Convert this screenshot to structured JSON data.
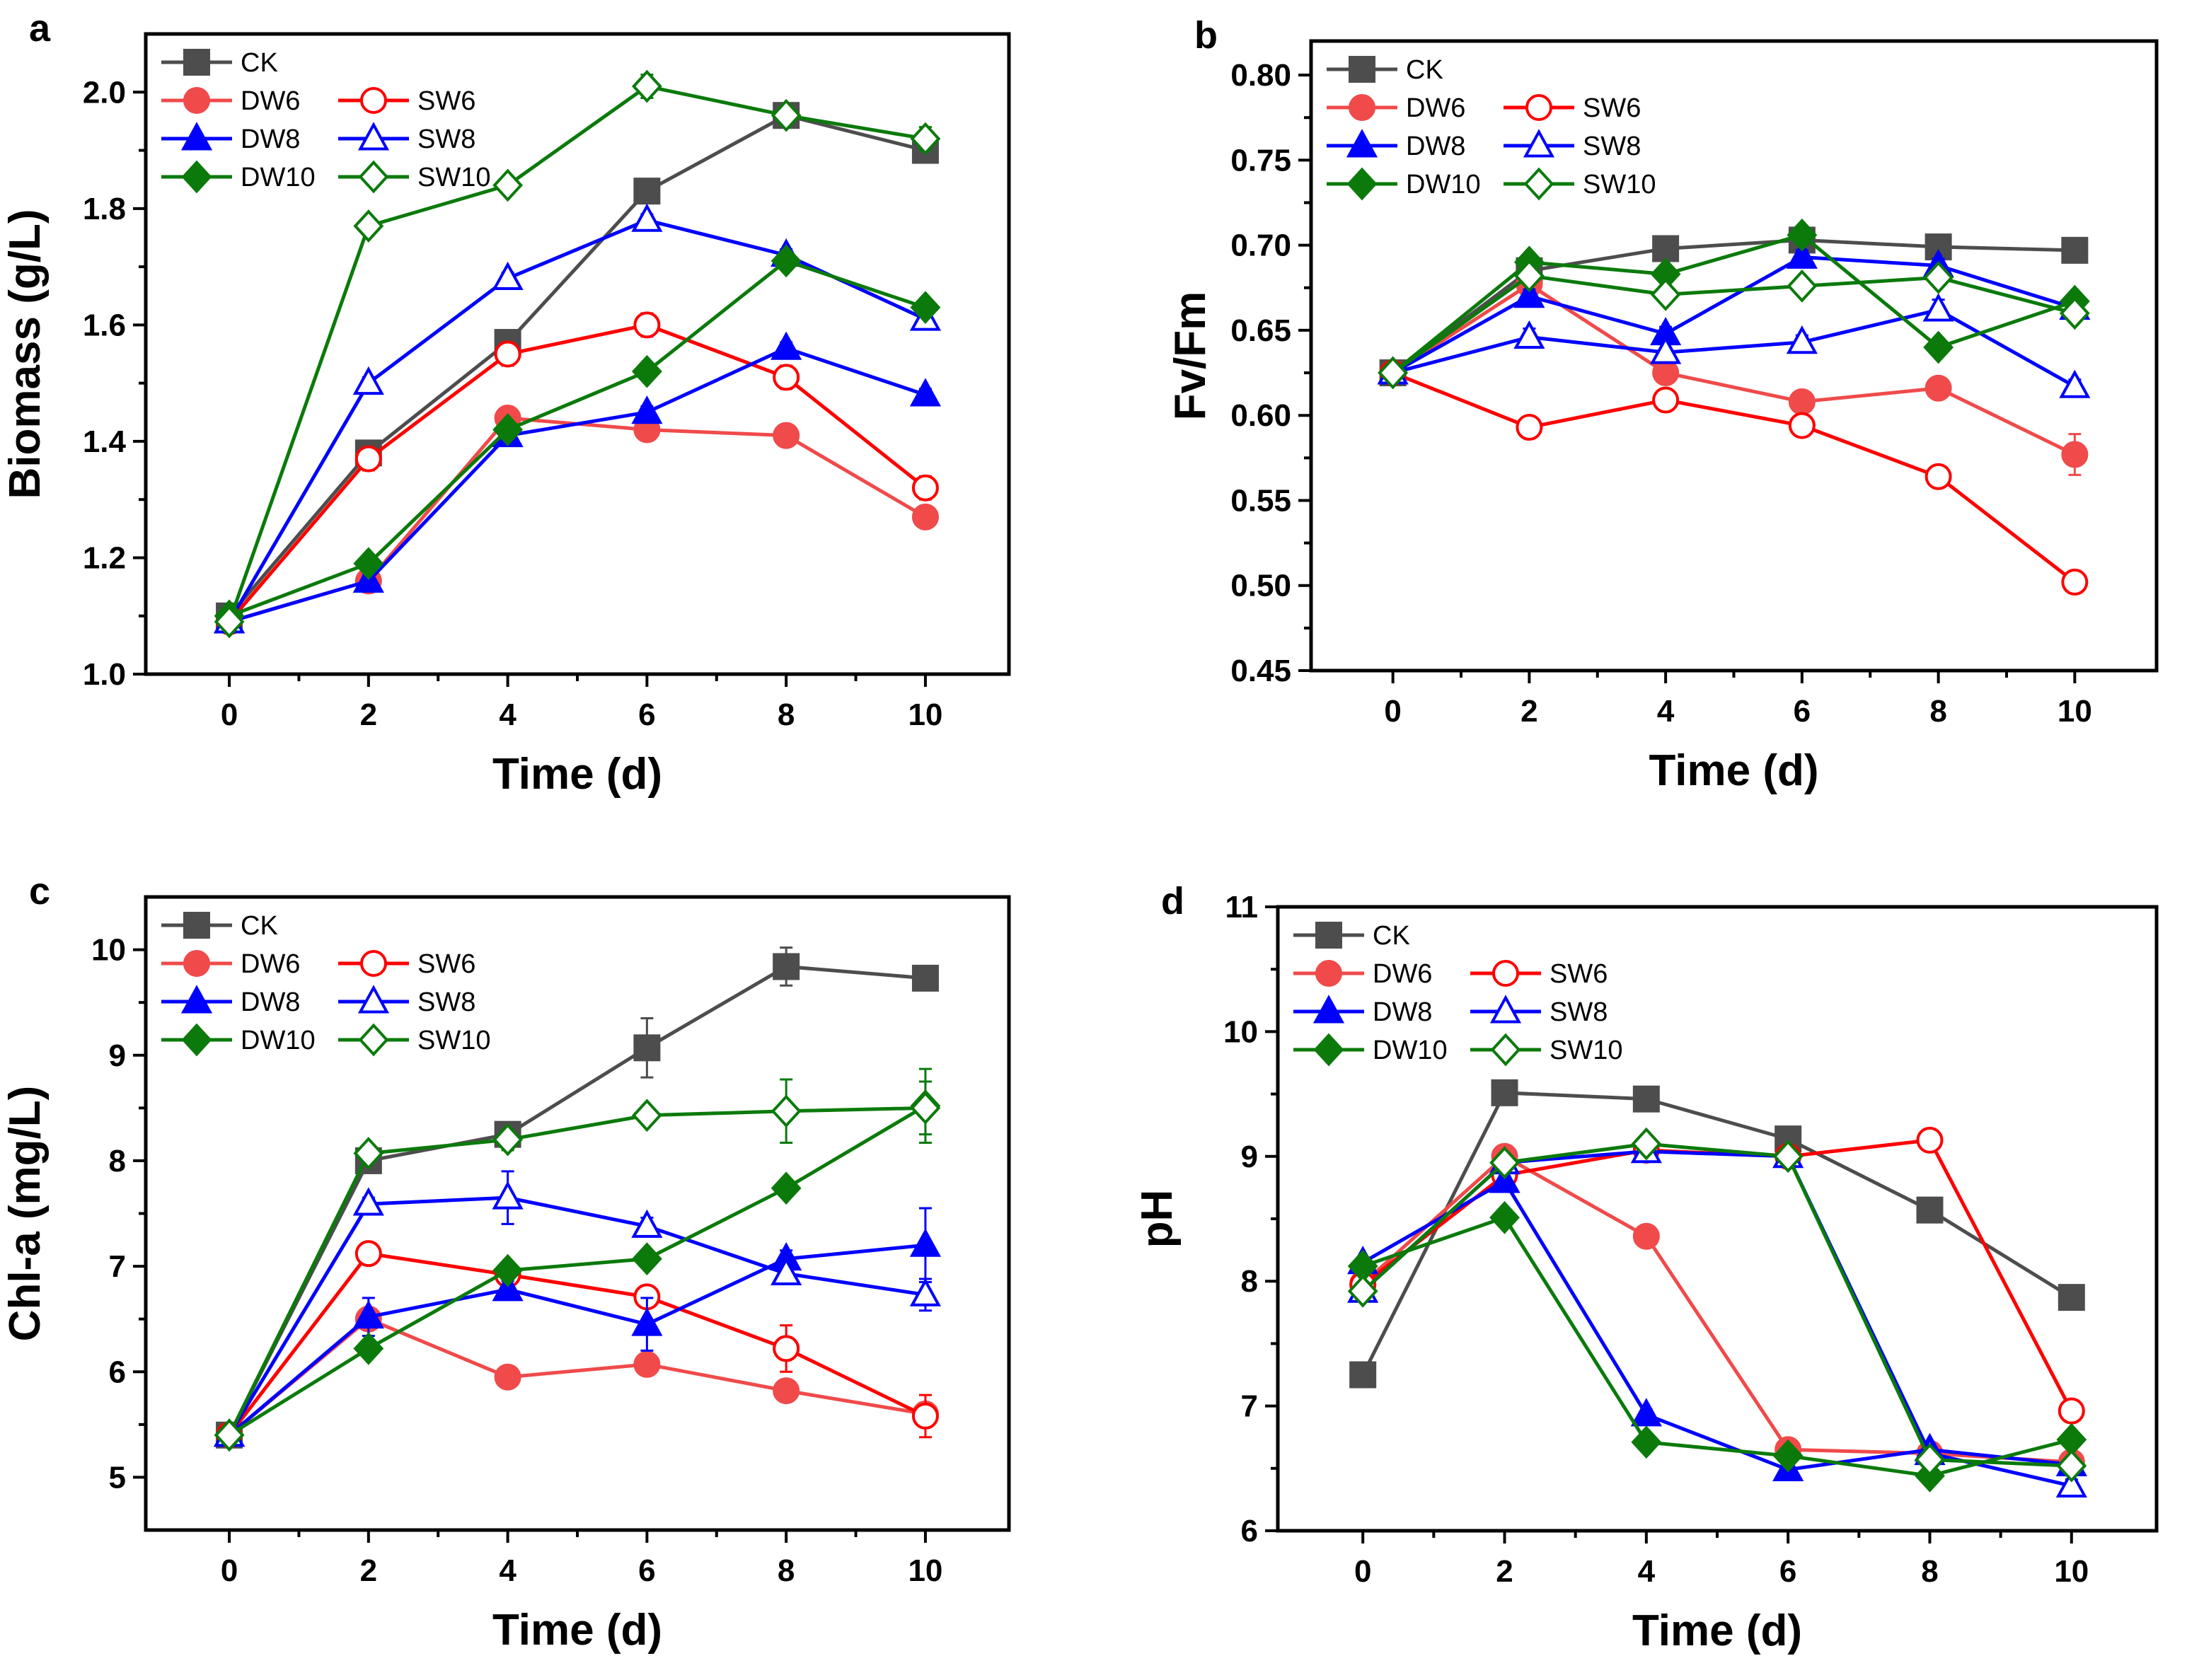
{
  "colors": {
    "CK": "#4d4d4d",
    "DW6": "#f04a4a",
    "SW6": "#ff0000",
    "DW8": "#0000ff",
    "SW8": "#0000ff",
    "DW10": "#0b7a0b",
    "SW10": "#0b7a0b"
  },
  "chart_data": [
    {
      "panel": "a",
      "type": "line",
      "xlabel": "Time (d)",
      "ylabel": "Biomass (g/L)",
      "x": [
        0,
        2,
        4,
        6,
        8,
        10
      ],
      "xticks": [
        "0",
        "2",
        "4",
        "6",
        "8",
        "10"
      ],
      "xlim": [
        -1.2,
        11.2
      ],
      "ylim": [
        1.0,
        2.1
      ],
      "yticks": [
        "1.0",
        "1.2",
        "1.4",
        "1.6",
        "1.8",
        "2.0"
      ],
      "legend": [
        "CK",
        "DW6",
        "SW6",
        "DW8",
        "SW8",
        "DW10",
        "SW10"
      ],
      "series": [
        {
          "name": "CK",
          "values": [
            1.1,
            1.38,
            1.57,
            1.83,
            1.96,
            1.9
          ],
          "errors": [
            0.01,
            0.01,
            0.01,
            0.01,
            0.01,
            0.01
          ]
        },
        {
          "name": "DW6",
          "values": [
            1.09,
            1.16,
            1.44,
            1.42,
            1.41,
            1.27
          ],
          "errors": [
            0.01,
            0.01,
            0.01,
            0.01,
            0.01,
            0.01
          ]
        },
        {
          "name": "SW6",
          "values": [
            1.09,
            1.37,
            1.55,
            1.6,
            1.51,
            1.32
          ],
          "errors": [
            0.01,
            0.02,
            0.02,
            0.02,
            0.02,
            0.02
          ]
        },
        {
          "name": "DW8",
          "values": [
            1.09,
            1.16,
            1.41,
            1.45,
            1.56,
            1.48
          ],
          "errors": [
            0.01,
            0.01,
            0.01,
            0.01,
            0.01,
            0.01
          ]
        },
        {
          "name": "SW8",
          "values": [
            1.09,
            1.5,
            1.68,
            1.78,
            1.72,
            1.61
          ],
          "errors": [
            0.01,
            0.01,
            0.01,
            0.01,
            0.01,
            0.01
          ]
        },
        {
          "name": "DW10",
          "values": [
            1.1,
            1.19,
            1.42,
            1.52,
            1.71,
            1.63
          ],
          "errors": [
            0.01,
            0.01,
            0.01,
            0.01,
            0.01,
            0.01
          ]
        },
        {
          "name": "SW10",
          "values": [
            1.09,
            1.77,
            1.84,
            2.01,
            1.96,
            1.92
          ],
          "errors": [
            0.01,
            0.01,
            0.01,
            0.02,
            0.01,
            0.02
          ]
        }
      ]
    },
    {
      "panel": "b",
      "type": "line",
      "xlabel": "Time (d)",
      "ylabel": "Fv/Fm",
      "x": [
        0,
        2,
        4,
        6,
        8,
        10
      ],
      "xticks": [
        "0",
        "2",
        "4",
        "6",
        "8",
        "10"
      ],
      "xlim": [
        -1.2,
        11.2
      ],
      "ylim": [
        0.45,
        0.82
      ],
      "yticks": [
        "0.45",
        "0.50",
        "0.55",
        "0.60",
        "0.65",
        "0.70",
        "0.75",
        "0.80"
      ],
      "legend": [
        "CK",
        "DW6",
        "SW6",
        "DW8",
        "SW8",
        "DW10",
        "SW10"
      ],
      "series": [
        {
          "name": "CK",
          "values": [
            0.625,
            0.685,
            0.698,
            0.703,
            0.699,
            0.697
          ],
          "errors": [
            0.003,
            0.003,
            0.003,
            0.003,
            0.003,
            0.003
          ]
        },
        {
          "name": "DW6",
          "values": [
            0.625,
            0.677,
            0.625,
            0.608,
            0.616,
            0.577
          ],
          "errors": [
            0.003,
            0.005,
            0.005,
            0.004,
            0.004,
            0.012
          ]
        },
        {
          "name": "SW6",
          "values": [
            0.625,
            0.593,
            0.609,
            0.594,
            0.564,
            0.502
          ],
          "errors": [
            0.003,
            0.004,
            0.005,
            0.005,
            0.005,
            0.006
          ]
        },
        {
          "name": "DW8",
          "values": [
            0.625,
            0.67,
            0.648,
            0.693,
            0.688,
            0.663
          ],
          "errors": [
            0.003,
            0.004,
            0.004,
            0.004,
            0.004,
            0.004
          ]
        },
        {
          "name": "SW8",
          "values": [
            0.625,
            0.646,
            0.637,
            0.643,
            0.662,
            0.617
          ],
          "errors": [
            0.003,
            0.005,
            0.005,
            0.004,
            0.006,
            0.004
          ]
        },
        {
          "name": "DW10",
          "values": [
            0.625,
            0.69,
            0.683,
            0.706,
            0.64,
            0.667
          ],
          "errors": [
            0.003,
            0.003,
            0.003,
            0.003,
            0.003,
            0.003
          ]
        },
        {
          "name": "SW10",
          "values": [
            0.625,
            0.682,
            0.671,
            0.676,
            0.681,
            0.66
          ],
          "errors": [
            0.003,
            0.004,
            0.005,
            0.004,
            0.005,
            0.004
          ]
        }
      ]
    },
    {
      "panel": "c",
      "type": "line",
      "xlabel": "Time (d)",
      "ylabel": "Chl-a (mg/L)",
      "x": [
        0,
        2,
        4,
        6,
        8,
        10
      ],
      "xticks": [
        "0",
        "2",
        "4",
        "6",
        "8",
        "10"
      ],
      "xlim": [
        -1.2,
        11.2
      ],
      "ylim": [
        4.5,
        10.5
      ],
      "yticks": [
        "5",
        "6",
        "7",
        "8",
        "9",
        "10"
      ],
      "legend": [
        "CK",
        "DW6",
        "SW6",
        "DW8",
        "SW8",
        "DW10",
        "SW10"
      ],
      "series": [
        {
          "name": "CK",
          "values": [
            5.4,
            8.0,
            8.25,
            9.07,
            9.84,
            9.73
          ],
          "errors": [
            0.05,
            0.05,
            0.08,
            0.28,
            0.18,
            0.05
          ]
        },
        {
          "name": "DW6",
          "values": [
            5.4,
            6.5,
            5.95,
            6.07,
            5.82,
            5.6
          ],
          "errors": [
            0.05,
            0.08,
            0.08,
            0.08,
            0.08,
            0.08
          ]
        },
        {
          "name": "SW6",
          "values": [
            5.4,
            7.12,
            6.92,
            6.71,
            6.22,
            5.58
          ],
          "errors": [
            0.05,
            0.07,
            0.07,
            0.08,
            0.22,
            0.2
          ]
        },
        {
          "name": "DW8",
          "values": [
            5.4,
            6.52,
            6.78,
            6.45,
            7.07,
            7.2
          ],
          "errors": [
            0.05,
            0.18,
            0.08,
            0.25,
            0.08,
            0.35
          ]
        },
        {
          "name": "SW8",
          "values": [
            5.4,
            7.59,
            7.65,
            7.38,
            6.93,
            6.73
          ],
          "errors": [
            0.05,
            0.06,
            0.25,
            0.08,
            0.08,
            0.15
          ]
        },
        {
          "name": "DW10",
          "values": [
            5.4,
            6.22,
            6.96,
            7.07,
            7.74,
            8.52
          ],
          "errors": [
            0.05,
            0.08,
            0.08,
            0.06,
            0.08,
            0.35
          ]
        },
        {
          "name": "SW10",
          "values": [
            5.4,
            8.07,
            8.2,
            8.43,
            8.47,
            8.5
          ],
          "errors": [
            0.05,
            0.07,
            0.1,
            0.08,
            0.3,
            0.25
          ]
        }
      ]
    },
    {
      "panel": "d",
      "type": "line",
      "xlabel": "Time (d)",
      "ylabel": "pH",
      "x": [
        0,
        2,
        4,
        6,
        8,
        10
      ],
      "xticks": [
        "0",
        "2",
        "4",
        "6",
        "8",
        "10"
      ],
      "xlim": [
        -1.2,
        11.2
      ],
      "ylim": [
        6,
        11
      ],
      "yticks": [
        "6",
        "7",
        "8",
        "9",
        "10",
        "11"
      ],
      "legend": [
        "CK",
        "DW6",
        "SW6",
        "DW8",
        "SW8",
        "DW10",
        "SW10"
      ],
      "series": [
        {
          "name": "CK",
          "values": [
            7.25,
            9.51,
            9.46,
            9.14,
            8.57,
            7.87
          ],
          "errors": [
            0.03,
            0.03,
            0.03,
            0.03,
            0.03,
            0.03
          ]
        },
        {
          "name": "DW6",
          "values": [
            7.98,
            9.0,
            8.36,
            6.65,
            6.62,
            6.55
          ],
          "errors": [
            0.04,
            0.04,
            0.04,
            0.04,
            0.04,
            0.04
          ]
        },
        {
          "name": "SW6",
          "values": [
            7.97,
            8.85,
            9.05,
            9.0,
            9.13,
            6.96
          ],
          "errors": [
            0.04,
            0.05,
            0.05,
            0.05,
            0.05,
            0.05
          ]
        },
        {
          "name": "DW8",
          "values": [
            8.15,
            8.8,
            6.93,
            6.49,
            6.65,
            6.53
          ],
          "errors": [
            0.04,
            0.04,
            0.04,
            0.04,
            0.04,
            0.04
          ]
        },
        {
          "name": "SW8",
          "values": [
            7.92,
            8.95,
            9.04,
            9.0,
            6.62,
            6.36
          ],
          "errors": [
            0.04,
            0.05,
            0.05,
            0.05,
            0.05,
            0.05
          ]
        },
        {
          "name": "DW10",
          "values": [
            8.12,
            8.51,
            6.71,
            6.6,
            6.44,
            6.73
          ],
          "errors": [
            0.04,
            0.04,
            0.04,
            0.04,
            0.04,
            0.04
          ]
        },
        {
          "name": "SW10",
          "values": [
            7.92,
            8.95,
            9.1,
            9.0,
            6.57,
            6.52
          ],
          "errors": [
            0.04,
            0.05,
            0.05,
            0.05,
            0.05,
            0.05
          ]
        }
      ]
    }
  ]
}
